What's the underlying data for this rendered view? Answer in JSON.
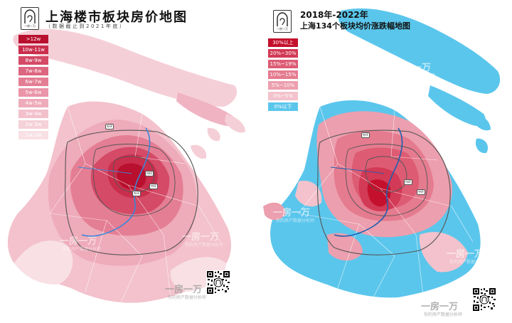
{
  "left": {
    "title": "上海楼市板块房价地图",
    "subtitle": "（数据截止到2021年底）",
    "legend": [
      {
        "label": ">12w",
        "color": "#b8102e"
      },
      {
        "label": "10w-11w",
        "color": "#c92e4c"
      },
      {
        "label": "8w-9w",
        "color": "#d44a67"
      },
      {
        "label": "7w-8w",
        "color": "#dd6680"
      },
      {
        "label": "6w-7w",
        "color": "#e47e94"
      },
      {
        "label": "5w-6w",
        "color": "#ea95a8"
      },
      {
        "label": "4w-5w",
        "color": "#eeabb9"
      },
      {
        "label": "3w-4w",
        "color": "#f2c0cb"
      },
      {
        "label": "2w-3w",
        "color": "#f5d1d9"
      },
      {
        "label": "1w-2w",
        "color": "#f8e0e5"
      }
    ],
    "watermark": {
      "main": "一房一万",
      "sub": "你的房产数据分析师"
    },
    "road_labels": [
      "外环",
      "内环",
      "中环",
      "外环"
    ]
  },
  "right": {
    "title_line1": "2018年-2022年",
    "title_line2": "上海134个板块均价涨跌幅地图",
    "legend": [
      {
        "label": "30%以上",
        "color": "#c4102c"
      },
      {
        "label": "20%~30%",
        "color": "#d23a55"
      },
      {
        "label": "15%~19%",
        "color": "#dd5c74"
      },
      {
        "label": "10%~15%",
        "color": "#e57b8f"
      },
      {
        "label": "5%~10%",
        "color": "#ec9fae"
      },
      {
        "label": "0%~5%",
        "color": "#f3c2cc"
      },
      {
        "label": "0%以下",
        "color": "#5bc6ec"
      }
    ],
    "watermark": {
      "main": "一房一万",
      "sub": "你的房产数据分析师"
    },
    "road_labels": [
      "外环",
      "内环",
      "中环"
    ]
  },
  "colors": {
    "ring_road": "#555555",
    "river": "#3a86d8",
    "blue_area": "#5bc6ec",
    "pink_light": "#f5d1d9"
  }
}
